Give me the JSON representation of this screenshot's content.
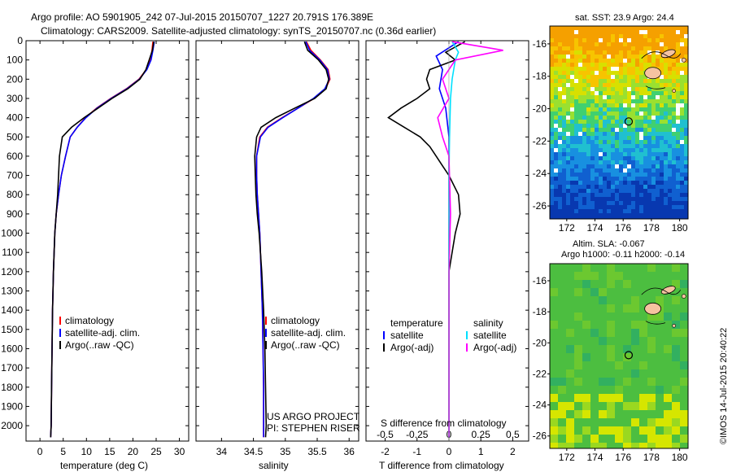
{
  "header": {
    "line1": "Argo profile: AO 5901905_242 07-Jul-2015 20150707_1227 20.791S 176.389E",
    "line2": "Climatology: CARS2009. Satellite-adjusted climatology: synTS_20150707.nc (0.36d earlier)"
  },
  "colors": {
    "climatology": "#ff0000",
    "satellite": "#0000ff",
    "argo": "#000000",
    "sat_s": "#00e0ff",
    "argo_s": "#ff00ff"
  },
  "chart_data": [
    {
      "type": "line",
      "xlabel": "temperature (deg C)",
      "xlim": [
        -3,
        32
      ],
      "ylim": [
        2080,
        0
      ],
      "xticks": [
        0,
        5,
        10,
        15,
        20,
        25,
        30
      ],
      "yticks": [
        0,
        100,
        200,
        300,
        400,
        500,
        600,
        700,
        800,
        900,
        1000,
        1100,
        1200,
        1300,
        1400,
        1500,
        1600,
        1700,
        1800,
        1900,
        2000
      ],
      "legend": [
        "climatology",
        "satellite-adj. clim.",
        "Argo(..raw -QC)"
      ],
      "series": [
        {
          "name": "climatology",
          "color": "#ff0000",
          "x": [
            24.3,
            24.1,
            23.8,
            22.9,
            21.3,
            18.6,
            15.2,
            12.2,
            9.8,
            8.0,
            6.5,
            5.5,
            4.6,
            4.0,
            3.5,
            3.2,
            2.9,
            2.7,
            2.6,
            2.5,
            2.4,
            2.3
          ],
          "y": [
            5,
            50,
            100,
            150,
            200,
            250,
            300,
            350,
            400,
            450,
            500,
            600,
            700,
            800,
            900,
            1000,
            1200,
            1400,
            1600,
            1800,
            2000,
            2060
          ]
        },
        {
          "name": "satellite-adj. clim.",
          "color": "#0000ff",
          "x": [
            24.6,
            24.3,
            23.9,
            23.0,
            21.4,
            18.7,
            15.3,
            12.3,
            9.9,
            8.0,
            6.5,
            5.5,
            4.6,
            4.0,
            3.5,
            3.2,
            2.9,
            2.7,
            2.6,
            2.5,
            2.4,
            2.3
          ],
          "y": [
            5,
            50,
            100,
            150,
            200,
            250,
            300,
            350,
            400,
            450,
            500,
            600,
            700,
            800,
            900,
            1000,
            1200,
            1400,
            1600,
            1800,
            2000,
            2060
          ]
        },
        {
          "name": "Argo(..raw -QC)",
          "color": "#000000",
          "x": [
            24.5,
            24.2,
            23.5,
            22.8,
            21.5,
            18.9,
            15.5,
            12.5,
            9.5,
            6.8,
            4.8,
            4.2,
            4.0,
            3.8,
            3.5,
            3.2,
            2.9,
            2.7,
            2.6,
            2.5,
            2.4,
            2.3
          ],
          "y": [
            5,
            50,
            100,
            150,
            200,
            250,
            300,
            350,
            400,
            450,
            500,
            600,
            700,
            800,
            900,
            1000,
            1200,
            1400,
            1600,
            1800,
            2000,
            2060
          ]
        }
      ]
    },
    {
      "type": "line",
      "xlabel": "salinity",
      "xlim": [
        33.6,
        36.15
      ],
      "ylim": [
        2080,
        0
      ],
      "xticks": [
        34,
        34.5,
        35,
        35.5,
        36
      ],
      "legend": [
        "climatology",
        "satellite-adj. clim.",
        "Argo(..raw -QC)"
      ],
      "series": [
        {
          "name": "climatology",
          "color": "#ff0000",
          "x": [
            35.33,
            35.4,
            35.55,
            35.67,
            35.7,
            35.63,
            35.45,
            35.2,
            34.95,
            34.72,
            34.6,
            34.55,
            34.55,
            34.56,
            34.58,
            34.6,
            34.62,
            34.64,
            34.65,
            34.66,
            34.66,
            34.66
          ],
          "y": [
            5,
            50,
            100,
            150,
            200,
            250,
            300,
            350,
            400,
            450,
            500,
            600,
            700,
            800,
            900,
            1000,
            1200,
            1400,
            1600,
            1800,
            2000,
            2060
          ]
        },
        {
          "name": "satellite-adj. clim.",
          "color": "#0000ff",
          "x": [
            35.32,
            35.38,
            35.54,
            35.66,
            35.69,
            35.62,
            35.44,
            35.2,
            34.96,
            34.73,
            34.61,
            34.55,
            34.55,
            34.56,
            34.58,
            34.6,
            34.62,
            34.64,
            34.65,
            34.66,
            34.66,
            34.66
          ],
          "y": [
            5,
            50,
            100,
            150,
            200,
            250,
            300,
            350,
            400,
            450,
            500,
            600,
            700,
            800,
            900,
            1000,
            1200,
            1400,
            1600,
            1800,
            2000,
            2060
          ]
        },
        {
          "name": "Argo(..raw -QC)",
          "color": "#000000",
          "x": [
            35.3,
            35.35,
            35.52,
            35.64,
            35.68,
            35.64,
            35.46,
            35.15,
            34.85,
            34.62,
            34.55,
            34.52,
            34.53,
            34.54,
            34.56,
            34.59,
            34.63,
            34.66,
            34.68,
            34.69,
            34.7,
            34.69
          ],
          "y": [
            5,
            50,
            100,
            150,
            200,
            250,
            300,
            350,
            400,
            450,
            500,
            600,
            700,
            800,
            900,
            1000,
            1200,
            1400,
            1600,
            1800,
            2000,
            2060
          ]
        }
      ]
    },
    {
      "type": "line",
      "xlabel": "T difference from climatology",
      "top_axis_label": "S difference from climatology",
      "xlim": [
        -2.6,
        2.5
      ],
      "ylim": [
        2080,
        0
      ],
      "xticks": [
        -2,
        -1,
        0,
        1,
        2
      ],
      "sticks": [
        -0.5,
        -0.25,
        0,
        0.25,
        0.5
      ],
      "legend_headers": [
        "temperature",
        "salinity"
      ],
      "legend": [
        "satellite",
        "Argo(-adj)",
        "satellite",
        "Argo(-adj)"
      ],
      "series": [
        {
          "name": "satellite",
          "color": "#0000ff",
          "x": [
            0.3,
            -0.4,
            -0.2,
            -0.3,
            -0.1,
            0.0,
            0.0,
            0.0,
            0.0,
            0.0,
            0.0,
            0.0,
            0.0
          ],
          "y": [
            5,
            80,
            150,
            250,
            350,
            500,
            700,
            900,
            1100,
            1400,
            1700,
            2000,
            2060
          ]
        },
        {
          "name": "Argo(-adj)",
          "color": "#000000",
          "x": [
            0.5,
            -0.1,
            0.2,
            -0.6,
            -0.7,
            -0.6,
            -1.0,
            -1.5,
            -1.9,
            -1.4,
            -0.9,
            -0.6,
            -0.4,
            -0.2,
            0.0,
            0.3,
            0.35,
            0.2,
            0.0,
            0.0,
            0.0,
            0.0
          ],
          "y": [
            5,
            60,
            100,
            150,
            200,
            250,
            300,
            350,
            400,
            450,
            500,
            550,
            600,
            650,
            700,
            800,
            900,
            1000,
            1200,
            1500,
            1800,
            2060
          ]
        },
        {
          "name": "satellite",
          "color": "#00e0ff",
          "x": [
            0.1,
            0.3,
            0.2,
            0.1,
            0.05,
            0.02,
            0.0,
            0.0,
            0.0,
            0.0,
            0.0
          ],
          "y": [
            5,
            60,
            100,
            200,
            300,
            500,
            700,
            1000,
            1400,
            1800,
            2060
          ]
        },
        {
          "name": "Argo(-adj)",
          "color": "#ff00ff",
          "x": [
            0.1,
            1.7,
            0.2,
            -0.2,
            0.0,
            -0.35,
            -0.2,
            0.0,
            0.05,
            0.0,
            0.0,
            0.0,
            0.0
          ],
          "y": [
            5,
            50,
            100,
            200,
            300,
            400,
            500,
            600,
            900,
            1200,
            1500,
            1800,
            2060
          ]
        }
      ]
    }
  ],
  "attribution": {
    "project": "US ARGO PROJECT",
    "pi": "PI: STEPHEN RISER"
  },
  "map_sst": {
    "title": "sat. SST: 23.9 Argo: 24.4",
    "xticks": [
      172,
      174,
      176,
      178,
      180
    ],
    "yticks": [
      -16,
      -18,
      -20,
      -22,
      -24,
      -26
    ],
    "xlim": [
      170.8,
      180.6
    ],
    "ylim": [
      -26.8,
      -14.9
    ]
  },
  "map_sla": {
    "title1": "Altim. SLA: -0.067",
    "title2": "Argo h1000: -0.11 h2000: -0.14",
    "xticks": [
      172,
      174,
      176,
      178,
      180
    ],
    "yticks": [
      -16,
      -18,
      -20,
      -22,
      -24,
      -26
    ],
    "xlim": [
      170.8,
      180.6
    ],
    "ylim": [
      -26.8,
      -14.9
    ]
  },
  "argo_position": {
    "lon": 176.389,
    "lat": -20.791
  },
  "credit": "©IMOS 14-Jul-2015 20:40:22"
}
